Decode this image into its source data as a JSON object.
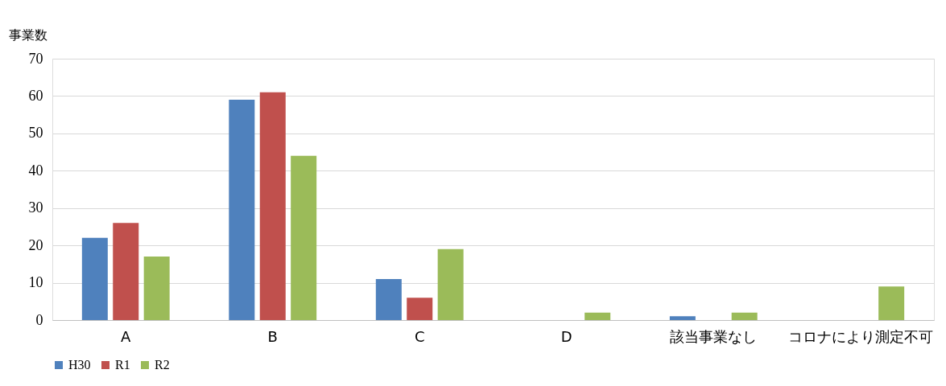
{
  "chart_data": {
    "type": "bar",
    "ylabel": "事業数",
    "categories": [
      "A",
      "B",
      "C",
      "D",
      "該当事業なし",
      "コロナにより測定不可"
    ],
    "series": [
      {
        "name": "H30",
        "color": "#4f81bd",
        "values": [
          22,
          59,
          11,
          0,
          1,
          0
        ]
      },
      {
        "name": "R1",
        "color": "#c0504d",
        "values": [
          26,
          61,
          6,
          0,
          0,
          0
        ]
      },
      {
        "name": "R2",
        "color": "#9bbb59",
        "values": [
          17,
          44,
          19,
          2,
          2,
          9
        ]
      }
    ],
    "ylim": [
      0,
      70
    ],
    "yticks": [
      0,
      10,
      20,
      30,
      40,
      50,
      60,
      70
    ],
    "grid": "y",
    "legend": "bottom"
  }
}
